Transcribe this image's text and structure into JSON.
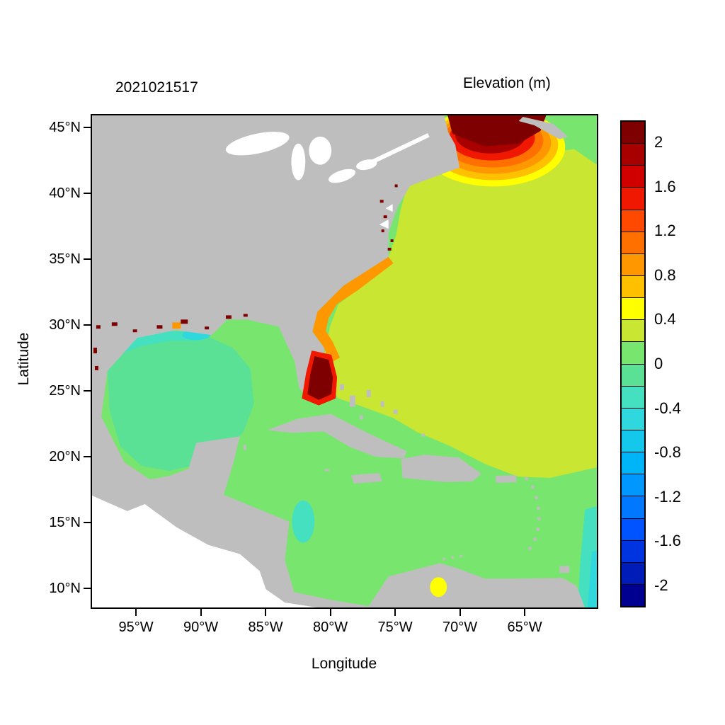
{
  "palette": {
    "land": "#BEBEBE",
    "background": "#FFFFFF",
    "frame": "#000000",
    "sea_0_to_0p2": "#78E66E",
    "sea_0p2_to_0p4": "#C8E632",
    "yellow_0p4": "#FFFF00",
    "amber_0p6": "#FFC000",
    "orange_0p8": "#FF9800",
    "orange_1p0": "#FF7000",
    "orangered_1p2": "#FF4800",
    "red_1p4": "#F01800",
    "red_1p6": "#D00000",
    "darkred_1p8": "#A80000",
    "maroon_2p0": "#7F0000",
    "sea_m0p2_to_0": "#5AE196",
    "teal_m0p4": "#44E0C0",
    "cyan_m0p6": "#2ED8DC"
  },
  "chart_data": {
    "type": "heatmap",
    "title": "Elevation (m)",
    "datetime_label": "2021021517",
    "xlabel": "Longitude",
    "ylabel": "Latitude",
    "x_ticks": [
      "95°W",
      "90°W",
      "85°W",
      "80°W",
      "75°W",
      "70°W",
      "65°W"
    ],
    "x_tick_values_deg_west": [
      95,
      90,
      85,
      80,
      75,
      70,
      65
    ],
    "y_ticks": [
      "45°N",
      "40°N",
      "35°N",
      "30°N",
      "25°N",
      "20°N",
      "15°N",
      "10°N"
    ],
    "y_tick_values_deg_north": [
      45,
      40,
      35,
      30,
      25,
      20,
      15,
      10
    ],
    "lon_range_deg_west": [
      98.5,
      59.4
    ],
    "lat_range_deg_north": [
      8.4,
      46
    ],
    "grid": false,
    "legend_position": "right-colorbar",
    "colorbar": {
      "units": "m",
      "min": -2.2,
      "max": 2.2,
      "cell_step": 0.2,
      "tick_labels": [
        "2",
        "1.6",
        "1.2",
        "0.8",
        "0.4",
        "0",
        "-0.4",
        "-0.8",
        "-1.2",
        "-1.6",
        "-2"
      ],
      "tick_values": [
        2,
        1.6,
        1.2,
        0.8,
        0.4,
        0,
        -0.4,
        -0.8,
        -1.2,
        -1.6,
        -2
      ],
      "colors_top_to_bottom": [
        "#7F0000",
        "#A80000",
        "#D00000",
        "#F01800",
        "#FF4800",
        "#FF7000",
        "#FF9800",
        "#FFC000",
        "#FFFF00",
        "#C8E632",
        "#78E66E",
        "#5AE196",
        "#44E0C0",
        "#2ED8DC",
        "#14C8EC",
        "#00B4F8",
        "#0098FF",
        "#0078FF",
        "#0054FF",
        "#0034E0",
        "#001CB8",
        "#000090"
      ]
    },
    "regions": [
      {
        "name": "Gulf of Maine / Scotian Shelf surge maximum",
        "approx_elevation_m": 2.0
      },
      {
        "name": "Ring around Gulf of Maine maximum",
        "approx_elevation_m": 1.0
      },
      {
        "name": "Open western North Atlantic",
        "approx_elevation_m": 0.3
      },
      {
        "name": "Southeast US coastal band (Hatteras to Florida)",
        "approx_elevation_m": 0.9
      },
      {
        "name": "South Florida / Everglades pocket",
        "approx_elevation_m": 2.0
      },
      {
        "name": "Caribbean Sea",
        "approx_elevation_m": 0.1
      },
      {
        "name": "Central and western Gulf of Mexico",
        "approx_elevation_m": -0.1
      },
      {
        "name": "Texas-Louisiana shelf strip",
        "approx_elevation_m": -0.4
      },
      {
        "name": "Northern Gulf coast flooded pockets",
        "approx_elevation_m": 2.0
      },
      {
        "name": "Nicaragua shelf patch",
        "approx_elevation_m": -0.3
      },
      {
        "name": "Eastern open-boundary strip (lower right)",
        "approx_elevation_m": -0.4
      },
      {
        "name": "Lake Maracaibo spot (Venezuela)",
        "approx_elevation_m": 0.5
      },
      {
        "name": "Land mask",
        "approx_elevation_m": null
      }
    ]
  }
}
